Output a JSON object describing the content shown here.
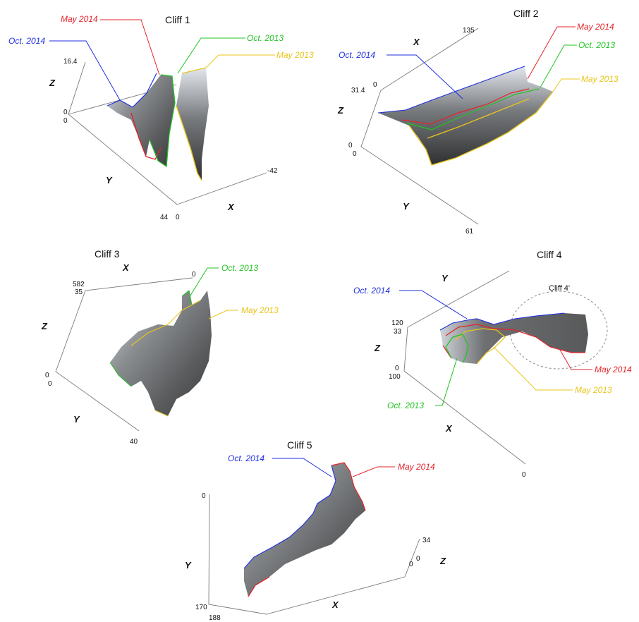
{
  "colors": {
    "oct2014": "#1f2fe0",
    "may2014": "#e3242b",
    "oct2013": "#21c321",
    "may2013": "#e8c51c"
  },
  "panels": [
    {
      "title": "Cliff 1",
      "axes": {
        "x": "X",
        "y": "Y",
        "z": "Z"
      },
      "ticks": [
        "16.4",
        "0",
        "0",
        "44",
        "0",
        "-42"
      ],
      "labels": [
        "Oct. 2014",
        "May 2014",
        "Oct. 2013",
        "May 2013"
      ]
    },
    {
      "title": "Cliff 2",
      "axes": {
        "x": "X",
        "y": "Y",
        "z": "Z"
      },
      "ticks": [
        "135",
        "0",
        "31.4",
        "0",
        "0",
        "61"
      ],
      "labels": [
        "Oct. 2014",
        "May 2014",
        "Oct. 2013",
        "May 2013"
      ]
    },
    {
      "title": "Cliff 3",
      "axes": {
        "x": "X",
        "y": "Y",
        "z": "Z"
      },
      "ticks": [
        "582",
        "35",
        "0",
        "0",
        "0",
        "40"
      ],
      "labels": [
        "Oct. 2013",
        "May 2013"
      ]
    },
    {
      "title": "Cliff 4",
      "subtitle": "Cliff 4'",
      "axes": {
        "x": "X",
        "y": "Y",
        "z": "Z"
      },
      "ticks": [
        "120",
        "33",
        "0",
        "100",
        "0"
      ],
      "labels": [
        "Oct. 2014",
        "May 2014",
        "May 2013",
        "Oct. 2013"
      ]
    },
    {
      "title": "Cliff 5",
      "axes": {
        "x": "X",
        "y": "Y",
        "z": "Z"
      },
      "ticks": [
        "0",
        "34",
        "0",
        "0",
        "170",
        "188"
      ],
      "labels": [
        "Oct. 2014",
        "May 2014"
      ]
    }
  ]
}
